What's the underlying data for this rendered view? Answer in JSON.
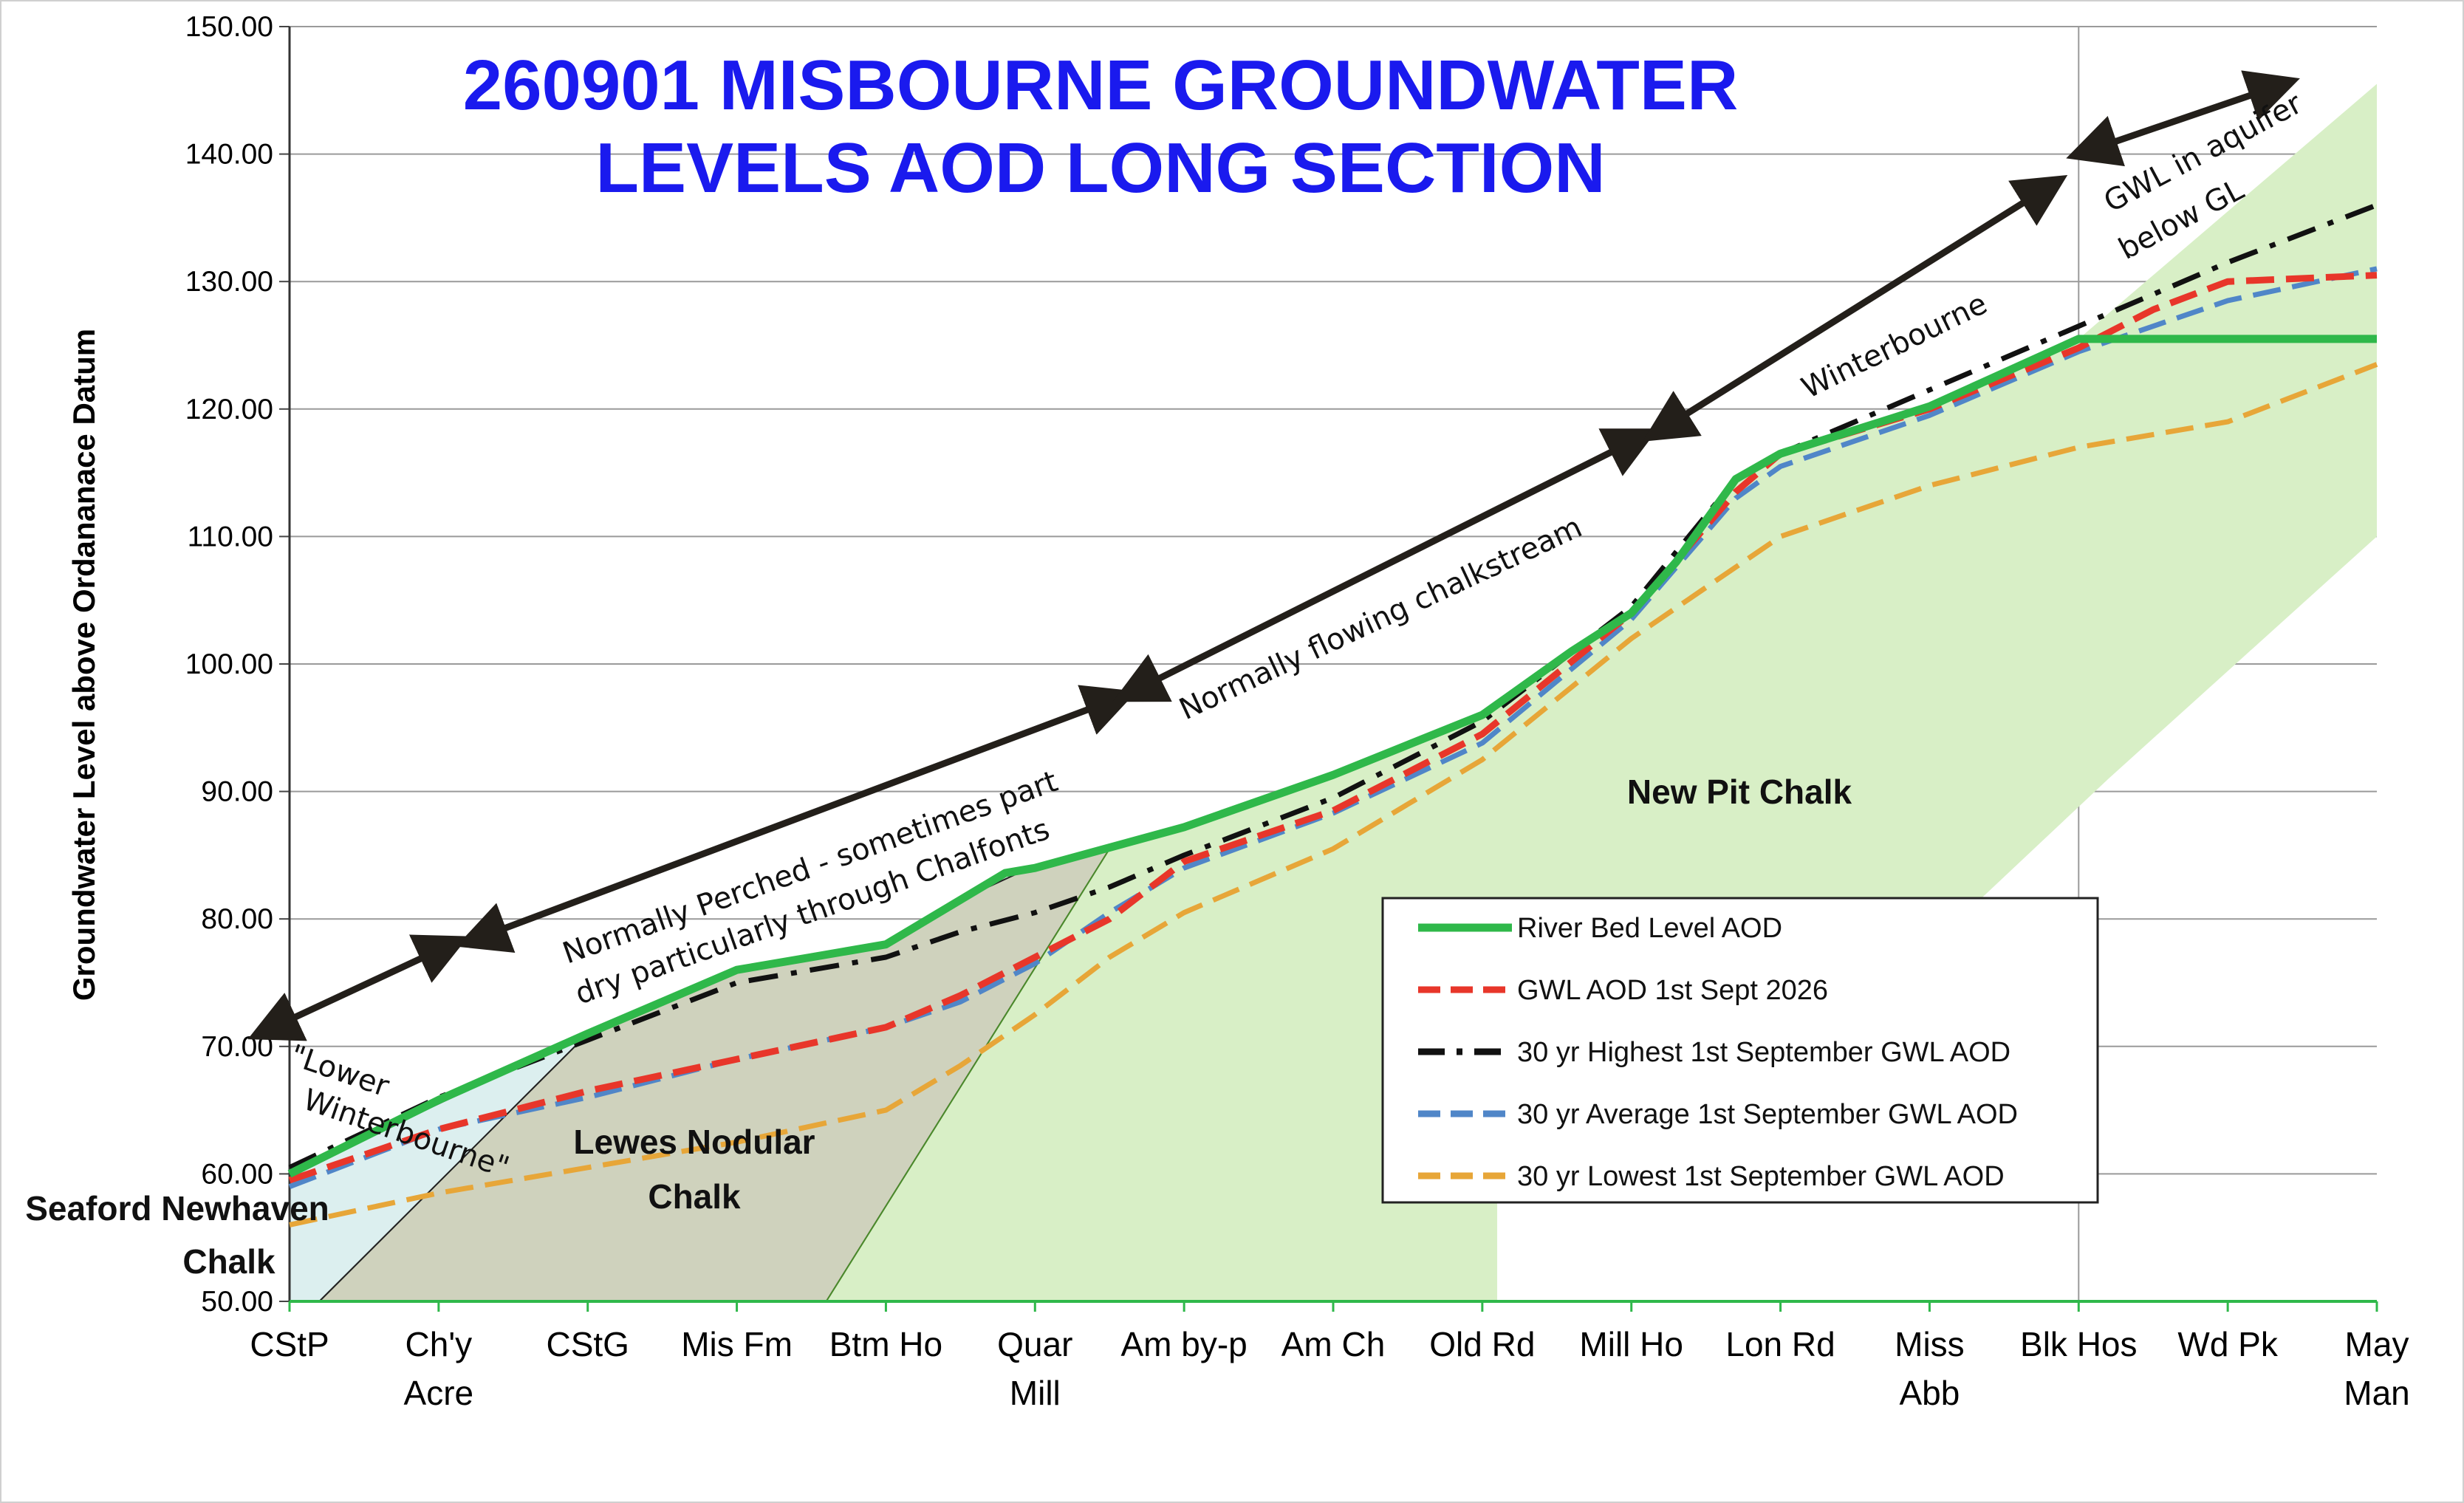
{
  "chart_data": {
    "type": "line",
    "title_lines": [
      "260901 MISBOURNE GROUNDWATER",
      "LEVELS AOD LONG SECTION"
    ],
    "ylabel": "Groundwater Level above Ordananace Datum",
    "ylim": [
      50,
      150
    ],
    "yticks": [
      "50.00",
      "60.00",
      "70.00",
      "80.00",
      "90.00",
      "100.00",
      "110.00",
      "120.00",
      "130.00",
      "140.00",
      "150.00"
    ],
    "grid": "horizontal",
    "legend_position": "lower-right",
    "categories": [
      [
        "CStP"
      ],
      [
        "Ch'y",
        "Acre"
      ],
      [
        "CStG"
      ],
      [
        "Mis Fm"
      ],
      [
        "Btm Ho"
      ],
      [
        "Quar",
        "Mill"
      ],
      [
        "Am by-p"
      ],
      [
        "Am Ch"
      ],
      [
        "Old Rd"
      ],
      [
        "Mill Ho"
      ],
      [
        "Lon Rd"
      ],
      [
        "Miss",
        "Abb"
      ],
      [
        "Blk Hos"
      ],
      [
        "Wd Pk"
      ],
      [
        "May",
        "Man"
      ]
    ],
    "series": [
      {
        "name": "River Bed Level AOD",
        "color": "#2fb84a",
        "style": "solid",
        "points": [
          [
            0,
            60
          ],
          [
            1,
            65.8
          ],
          [
            2,
            71
          ],
          [
            2.5,
            73.5
          ],
          [
            3,
            76
          ],
          [
            3.5,
            77
          ],
          [
            4,
            78
          ],
          [
            4.5,
            81.5
          ],
          [
            4.8,
            83.6
          ],
          [
            5,
            84
          ],
          [
            6,
            87.2
          ],
          [
            7,
            91.3
          ],
          [
            8,
            96
          ],
          [
            8.6,
            101
          ],
          [
            9,
            104
          ],
          [
            9.3,
            108
          ],
          [
            9.7,
            114.5
          ],
          [
            10,
            116.5
          ],
          [
            11,
            120.2
          ],
          [
            12,
            125.5
          ],
          [
            13,
            125.5
          ],
          [
            14,
            125.5
          ]
        ]
      },
      {
        "name": "GWL AOD 1st Sept 2026",
        "color": "#e8362a",
        "style": "dashed",
        "points": [
          [
            0,
            59.5
          ],
          [
            1,
            63.5
          ],
          [
            2,
            66.5
          ],
          [
            3,
            69
          ],
          [
            4,
            71.5
          ],
          [
            4.5,
            74
          ],
          [
            5,
            77
          ],
          [
            5.5,
            80
          ],
          [
            6,
            84.5
          ],
          [
            7,
            88.5
          ],
          [
            8,
            94.5
          ],
          [
            9,
            104
          ],
          [
            9.7,
            113.5
          ],
          [
            10,
            116.5
          ],
          [
            11,
            120
          ],
          [
            12,
            124.8
          ],
          [
            12.5,
            127.8
          ],
          [
            13,
            130
          ],
          [
            14,
            130.5
          ]
        ]
      },
      {
        "name": "30 yr Highest 1st September GWL AOD",
        "color": "#111111",
        "style": "dashdot",
        "points": [
          [
            0,
            60.5
          ],
          [
            1,
            66
          ],
          [
            2,
            70.5
          ],
          [
            3,
            75
          ],
          [
            4,
            77
          ],
          [
            4.5,
            79
          ],
          [
            5,
            80.5
          ],
          [
            5.5,
            82.5
          ],
          [
            6,
            85
          ],
          [
            7,
            89.5
          ],
          [
            8,
            95.5
          ],
          [
            9,
            104.5
          ],
          [
            9.7,
            114.5
          ],
          [
            10,
            116.5
          ],
          [
            11,
            121.5
          ],
          [
            12,
            126.5
          ],
          [
            13,
            131.5
          ],
          [
            14,
            136
          ]
        ]
      },
      {
        "name": "30 yr Average 1st September GWL AOD",
        "color": "#5086c8",
        "style": "dashed",
        "points": [
          [
            0,
            59
          ],
          [
            1,
            63.5
          ],
          [
            2,
            66
          ],
          [
            3,
            69
          ],
          [
            4,
            71.5
          ],
          [
            4.5,
            73.5
          ],
          [
            5,
            76.5
          ],
          [
            5.5,
            80.5
          ],
          [
            6,
            84
          ],
          [
            7,
            88.3
          ],
          [
            8,
            93.8
          ],
          [
            9,
            103.5
          ],
          [
            9.7,
            113
          ],
          [
            10,
            115.5
          ],
          [
            11,
            119.5
          ],
          [
            12,
            124.5
          ],
          [
            13,
            128.5
          ],
          [
            14,
            131
          ]
        ]
      },
      {
        "name": "30 yr Lowest 1st September GWL AOD",
        "color": "#e7a638",
        "style": "dashed",
        "points": [
          [
            0,
            56
          ],
          [
            1,
            58.5
          ],
          [
            2,
            60.5
          ],
          [
            3,
            62.5
          ],
          [
            4,
            65
          ],
          [
            4.5,
            68.5
          ],
          [
            5,
            72.5
          ],
          [
            5.5,
            77
          ],
          [
            6,
            80.5
          ],
          [
            7,
            85.5
          ],
          [
            8,
            92.5
          ],
          [
            9,
            102
          ],
          [
            10,
            110
          ],
          [
            11,
            114
          ],
          [
            12,
            117
          ],
          [
            13,
            119
          ],
          [
            14,
            123.5
          ]
        ]
      }
    ],
    "regions": [
      {
        "label": "Seaford Newhaven Chalk",
        "lines": [
          "Seaford Newhaven",
          "Chalk"
        ],
        "fill": "#dcefef",
        "polygon": [
          [
            0,
            50
          ],
          [
            0,
            60
          ],
          [
            2,
            71
          ],
          [
            0.2,
            50
          ]
        ]
      },
      {
        "label": "Lewes Nodular Chalk",
        "lines": [
          "Lewes Nodular",
          "Chalk"
        ],
        "fill": "#cfd2bd",
        "polygon": [
          [
            0.2,
            50
          ],
          [
            2,
            71
          ],
          [
            3,
            76
          ],
          [
            4,
            78
          ],
          [
            4.5,
            81.5
          ],
          [
            5,
            84.2
          ],
          [
            5.5,
            85.5
          ],
          [
            3.6,
            50
          ]
        ]
      },
      {
        "label": "New Pit Chalk",
        "lines": [
          "New Pit Chalk"
        ],
        "fill": "#d8efc6",
        "polygon": [
          [
            3.6,
            50
          ],
          [
            5.5,
            85.5
          ],
          [
            6,
            87.2
          ],
          [
            7,
            91.3
          ],
          [
            8,
            96
          ],
          [
            8.6,
            101
          ],
          [
            9,
            104
          ],
          [
            9.3,
            108
          ],
          [
            9.7,
            114.5
          ],
          [
            10,
            116.5
          ],
          [
            11,
            120.2
          ],
          [
            12,
            125.5
          ],
          [
            14,
            145.5
          ],
          [
            14,
            110
          ],
          [
            12.2,
            91
          ],
          [
            11.2,
            80
          ],
          [
            8.1,
            80
          ],
          [
            8.1,
            50
          ]
        ]
      }
    ],
    "annotations": [
      {
        "text": "\"Lower"
      },
      {
        "text": "Winterbourne\""
      },
      {
        "text": "Normally Perched - sometimes part"
      },
      {
        "text": "dry  particularly through Chalfonts"
      },
      {
        "text": "Normally flowing chalkstream"
      },
      {
        "text": "Winterbourne"
      },
      {
        "text": "GWL in aquifer"
      },
      {
        "text": "below GL"
      }
    ],
    "range_arrows": [
      {
        "from": [
          -0.2,
          71
        ],
        "to": [
          1.12,
          78.2
        ]
      },
      {
        "from": [
          1.2,
          78.2
        ],
        "to": [
          5.6,
          97.5
        ]
      },
      {
        "from": [
          5.6,
          97.5
        ],
        "to": [
          9.1,
          118
        ]
      },
      {
        "from": [
          9.15,
          118
        ],
        "to": [
          11.85,
          137.8
        ]
      },
      {
        "from": [
          12,
          140
        ],
        "to": [
          13.4,
          145.6
        ]
      }
    ]
  }
}
